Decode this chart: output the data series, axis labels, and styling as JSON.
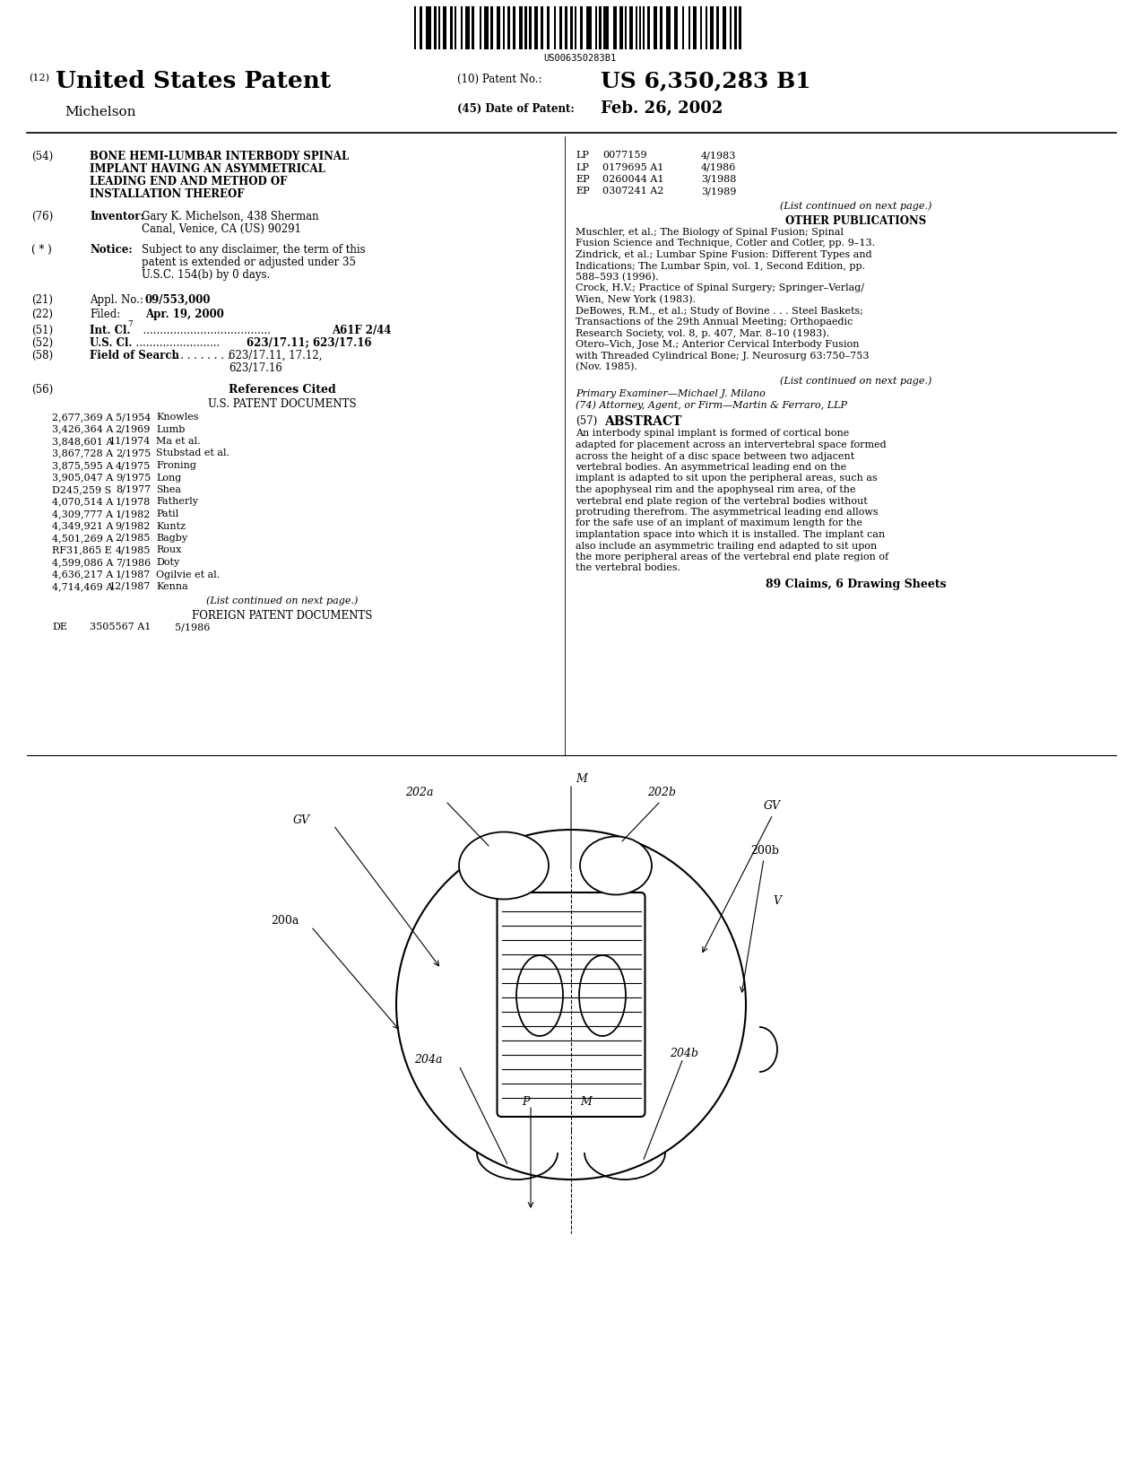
{
  "barcode_text": "US006350283B1",
  "patent_number": "US 6,350,283 B1",
  "patent_date": "Feb. 26, 2002",
  "inventor_last": "Michelson",
  "us_patent": "United States Patent",
  "title_text": "BONE HEMI-LUMBAR INTERBODY SPINAL\nIMPLANT HAVING AN ASYMMETRICAL\nLEADING END AND METHOD OF\nINSTALLATION THEREOF",
  "inventor_val": "Gary K. Michelson, 438 Sherman\nCanal, Venice, CA (US) 90291",
  "notice_val": "Subject to any disclaimer, the term of this\npatent is extended or adjusted under 35\nU.S.C. 154(b) by 0 days.",
  "appl_val": "09/553,000",
  "filed_val": "Apr. 19, 2000",
  "intcl_val": "A61F 2/44",
  "uscl_val": "623/17.11; 623/17.16",
  "fos_val": "623/17.11, 17.12,\n                                     623/17.16",
  "us_patents": [
    [
      "2,677,369 A",
      "5/1954",
      "Knowles"
    ],
    [
      "3,426,364 A",
      "2/1969",
      "Lumb"
    ],
    [
      "3,848,601 A",
      "11/1974",
      "Ma et al."
    ],
    [
      "3,867,728 A",
      "2/1975",
      "Stubstad et al."
    ],
    [
      "3,875,595 A",
      "4/1975",
      "Froning"
    ],
    [
      "3,905,047 A",
      "9/1975",
      "Long"
    ],
    [
      "D245,259 S",
      "8/1977",
      "Shea"
    ],
    [
      "4,070,514 A",
      "1/1978",
      "Fatherly"
    ],
    [
      "4,309,777 A",
      "1/1982",
      "Patil"
    ],
    [
      "4,349,921 A",
      "9/1982",
      "Kuntz"
    ],
    [
      "4,501,269 A",
      "2/1985",
      "Bagby"
    ],
    [
      "RF31,865 E",
      "4/1985",
      "Roux"
    ],
    [
      "4,599,086 A",
      "7/1986",
      "Doty"
    ],
    [
      "4,636,217 A",
      "1/1987",
      "Ogilvie et al."
    ],
    [
      "4,714,469 A",
      "12/1987",
      "Kenna"
    ]
  ],
  "foreign_patents_right": [
    [
      "LP",
      "0077159",
      "4/1983"
    ],
    [
      "LP",
      "0179695 A1",
      "4/1986"
    ],
    [
      "EP",
      "0260044 A1",
      "3/1988"
    ],
    [
      "EP",
      "0307241 A2",
      "3/1989"
    ]
  ],
  "foreign_de": [
    "DE",
    "3505567 A1",
    "5/1986"
  ],
  "other_pub_text": "Muschler, et al.; The Biology of Spinal Fusion; Spinal\nFusion Science and Technique, Cotler and Cotler, pp. 9–13.\nZindrick, et al.; Lumbar Spine Fusion: Different Types and\nIndications; The Lumbar Spin, vol. 1, Second Edition, pp.\n588–593 (1996).\nCrock, H.V.; Practice of Spinal Surgery; Springer–Verlag/\nWien, New York (1983).\nDeBowes, R.M., et al.; Study of Bovine . . . Steel Baskets;\nTransactions of the 29th Annual Meeting; Orthopaedic\nResearch Society, vol. 8, p. 407, Mar. 8–10 (1983).\nOtero–Vich, Jose M.; Anterior Cervical Interbody Fusion\nwith Threaded Cylindrical Bone; J. Neurosurg 63:750–753\n(Nov. 1985).",
  "examiner_label": "Primary Examiner—Michael J. Milano",
  "attorney_label": "(74) Attorney, Agent, or Firm—Martin & Ferraro, LLP",
  "abstract_text": "An interbody spinal implant is formed of cortical bone\nadapted for placement across an intervertebral space formed\nacross the height of a disc space between two adjacent\nvertebral bodies. An asymmetrical leading end on the\nimplant is adapted to sit upon the peripheral areas, such as\nthe apophyseal rim and the apophyseal rim area, of the\nvertebral end plate region of the vertebral bodies without\nprotruding therefrom. The asymmetrical leading end allows\nfor the safe use of an implant of maximum length for the\nimplantation space into which it is installed. The implant can\nalso include an asymmetric trailing end adapted to sit upon\nthe more peripheral areas of the vertebral end plate region of\nthe vertebral bodies.",
  "claims_text": "89 Claims, 6 Drawing Sheets",
  "bg_color": "#ffffff",
  "text_color": "#000000"
}
